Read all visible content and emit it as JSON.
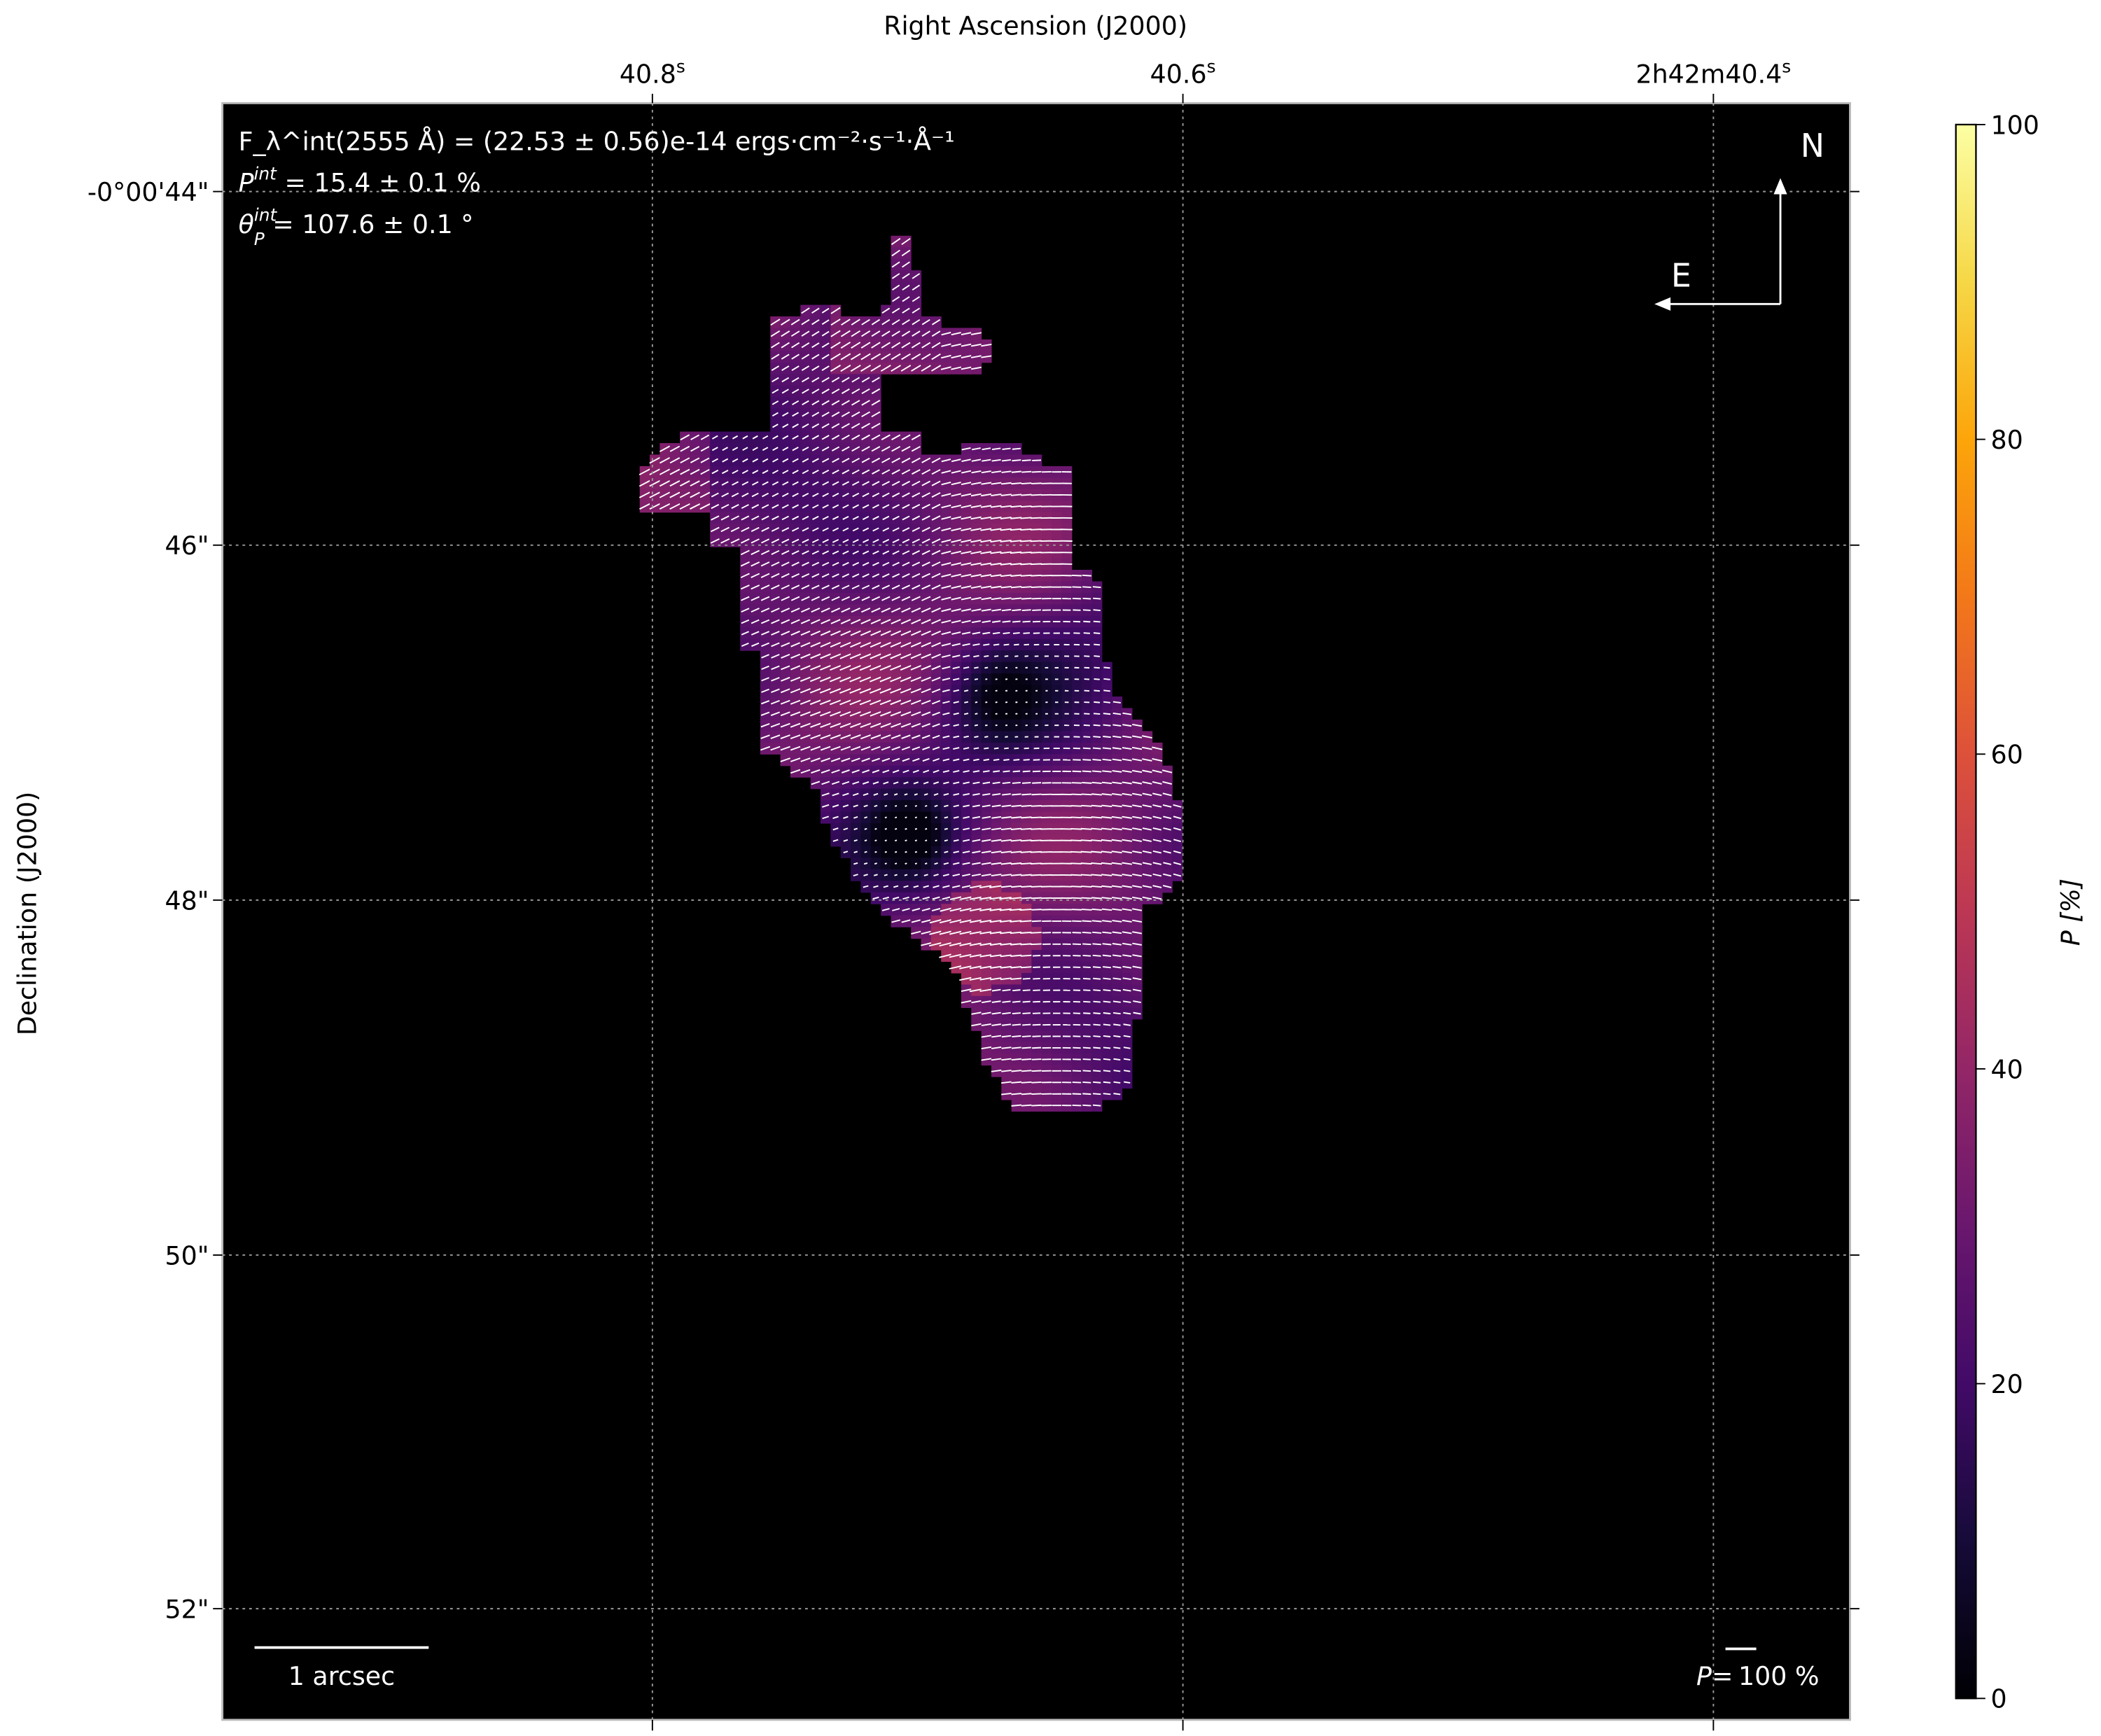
{
  "chart_data": {
    "type": "heatmap",
    "colormap": "inferno",
    "background_color": "#000000",
    "vector_color": "#ffffff",
    "xlabel": "Right Ascension (J2000)",
    "ylabel": "Declination (J2000)",
    "x_ticks": [
      "40.8",
      "40.6",
      "2h42m40.4"
    ],
    "x_tick_labels": [
      {
        "main": "40.8",
        "sup": "s"
      },
      {
        "main": "40.6",
        "sup": "s"
      },
      {
        "pre1": "2",
        "sup1": "h",
        "pre2": "42",
        "sup2": "m",
        "main": "40.4",
        "sup": "s"
      }
    ],
    "y_tick_labels": [
      "-0°00'44\"",
      "46\"",
      "48\"",
      "50\"",
      "52\""
    ],
    "grid": true,
    "colorbar": {
      "label": "P [%]",
      "range": [
        0,
        100
      ],
      "ticks": [
        "0",
        "20",
        "40",
        "60",
        "80",
        "100"
      ]
    },
    "annotations": {
      "flux": "F_λ^int(2555 Å) = (22.53 ± 0.56)e-14 ergs·cm⁻²·s⁻¹·Å⁻¹",
      "flux_parts": {
        "sym": "F",
        "sup": "int",
        "sub": "λ",
        "body": "(2555 Å) = (22.53 ± 0.56)e-14 ",
        "unit": "ergs · cm",
        "e1": "−2",
        "u2": " · s",
        "e2": "−1",
        "u3": " · Å",
        "e3": "−1"
      },
      "pol": {
        "sym": "P",
        "sup": "int",
        "body": " = 15.4 ± 0.1 %"
      },
      "angle": {
        "sym": "θ",
        "sup": "int",
        "sub": "P",
        "body": " = 107.6 ± 0.1 °"
      },
      "compass_north": "N",
      "compass_east": "E",
      "scale_bar": "1 arcsec",
      "vector_scale": {
        "prefix": "P=",
        "value": "100",
        "unit": " %"
      }
    },
    "value_range_in_map": [
      0,
      50
    ]
  }
}
